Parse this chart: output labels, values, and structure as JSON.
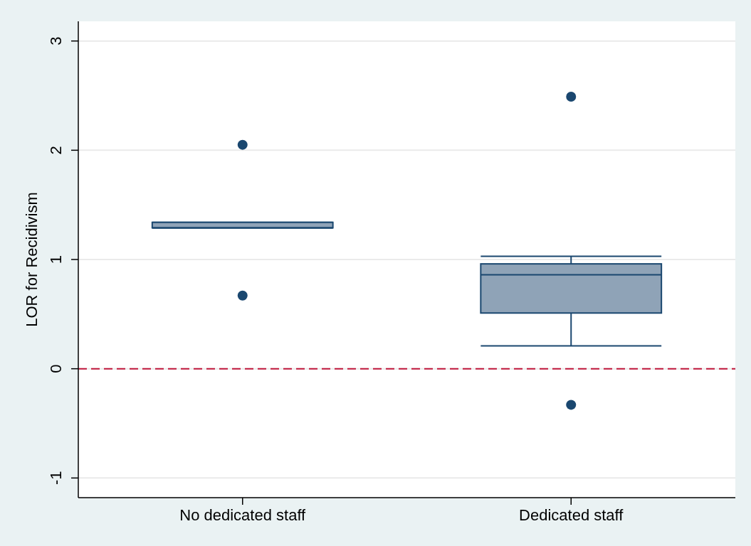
{
  "chart_data": {
    "type": "box",
    "ylabel": "LOR for Recidivism",
    "categories": [
      "No dedicated staff",
      "Dedicated staff"
    ],
    "boxes": [
      {
        "low": 1.29,
        "q1": 1.29,
        "median": 1.29,
        "q3": 1.34,
        "high": 1.34,
        "outliers": [
          2.05,
          0.67
        ]
      },
      {
        "low": 0.21,
        "q1": 0.51,
        "median": 0.86,
        "q3": 0.96,
        "high": 1.03,
        "outliers": [
          2.49,
          -0.33
        ]
      }
    ],
    "color": "#8fa3b7",
    "ylim": [
      -1.18,
      3.18
    ],
    "yticks": [
      -1,
      0,
      1,
      2,
      3
    ],
    "grid": "y",
    "ref_lines": [
      {
        "axis": "y",
        "value": 0,
        "color": "#c0173c",
        "line_style": "dashed"
      }
    ]
  }
}
